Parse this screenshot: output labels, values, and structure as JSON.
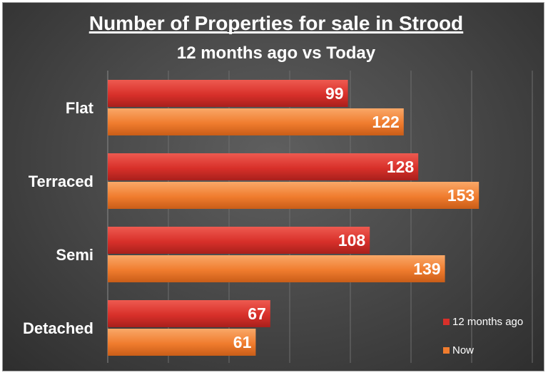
{
  "chart_data": {
    "type": "bar",
    "orientation": "horizontal",
    "title": "Number of Properties for sale in Strood",
    "subtitle": "12 months ago vs Today",
    "categories": [
      "Flat",
      "Terraced",
      "Semi",
      "Detached"
    ],
    "series": [
      {
        "name": "12 months ago",
        "values": [
          99,
          128,
          108,
          67
        ],
        "color": "#d8302a"
      },
      {
        "name": "Now",
        "values": [
          122,
          153,
          139,
          61
        ],
        "color": "#f07c2e"
      }
    ],
    "xlim": [
      0,
      175
    ],
    "grid": true,
    "legend_position": "bottom-right"
  }
}
